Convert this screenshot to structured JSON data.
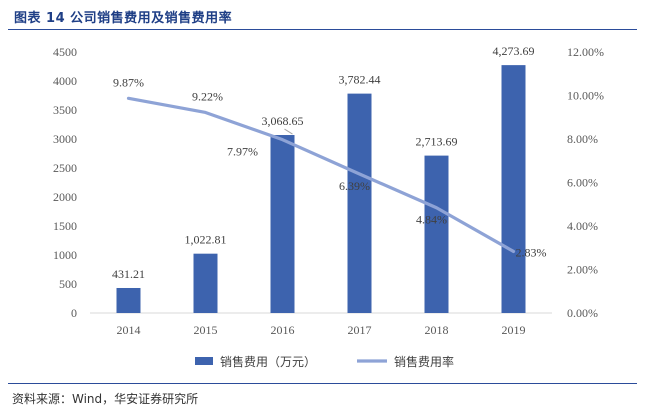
{
  "figure_title": "图表 14  公司销售费用及销售费用率",
  "source_note": "资料来源：Wind，华安证券研究所",
  "colors": {
    "bar": "#3d63ae",
    "line": "#8ea3d6",
    "title": "#1f3f86"
  },
  "chart_data": {
    "type": "bar",
    "categories": [
      "2014",
      "2015",
      "2016",
      "2017",
      "2018",
      "2019"
    ],
    "series": [
      {
        "name": "销售费用（万元）",
        "type": "bar",
        "axis": "left",
        "values": [
          431.21,
          1022.81,
          3068.65,
          3782.44,
          2713.69,
          4273.69
        ],
        "labels": [
          "431.21",
          "1,022.81",
          "3,068.65",
          "3,782.44",
          "2,713.69",
          "4,273.69"
        ]
      },
      {
        "name": "销售费用率",
        "type": "line",
        "axis": "right",
        "values": [
          9.87,
          9.22,
          7.97,
          6.39,
          4.84,
          2.83
        ],
        "labels": [
          "9.87%",
          "9.22%",
          "7.97%",
          "6.39%",
          "4.84%",
          "2.83%"
        ]
      }
    ],
    "y_left": {
      "ylim": [
        0,
        4500
      ],
      "ticks": [
        "0",
        "500",
        "1000",
        "1500",
        "2000",
        "2500",
        "3000",
        "3500",
        "4000",
        "4500"
      ]
    },
    "y_right": {
      "ylim": [
        0,
        12
      ],
      "ticks": [
        "0.00%",
        "2.00%",
        "4.00%",
        "6.00%",
        "8.00%",
        "10.00%",
        "12.00%"
      ]
    },
    "legend_position": "bottom",
    "grid": false
  }
}
